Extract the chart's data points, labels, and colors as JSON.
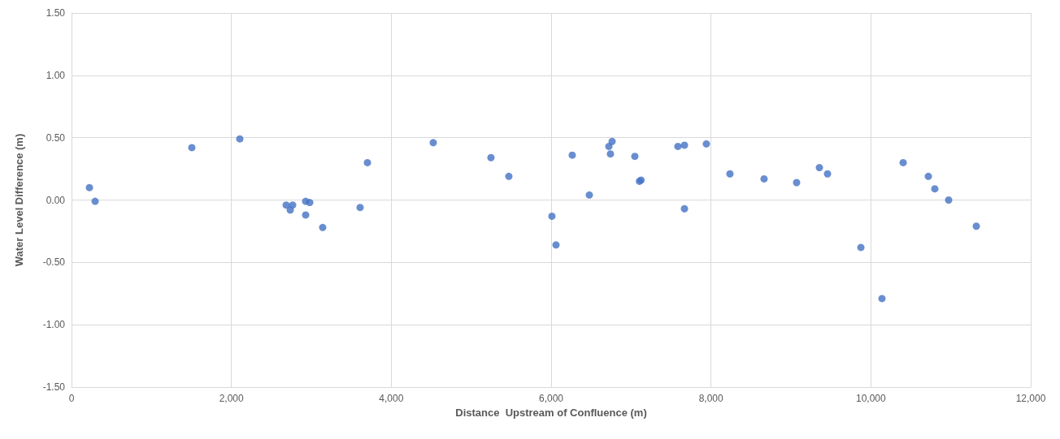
{
  "chart_data": {
    "type": "scatter",
    "xlabel": "Distance  Upstream of Confluence (m)",
    "ylabel": "Water Level Difference (m)",
    "x": [
      224,
      295,
      1505,
      2105,
      2685,
      2766,
      2736,
      2929,
      2980,
      2929,
      3142,
      3610,
      3702,
      4525,
      5247,
      5471,
      6010,
      6061,
      6264,
      6478,
      6722,
      6742,
      6763,
      7047,
      7105,
      7125,
      7586,
      7668,
      7668,
      7942,
      8237,
      8664,
      9071,
      9356,
      9458,
      9875,
      10139,
      10404,
      10719,
      10800,
      10973,
      11319
    ],
    "series": [
      {
        "color": "#4472c4",
        "values": [
          0.1,
          -0.01,
          0.42,
          0.49,
          -0.04,
          -0.04,
          -0.08,
          -0.01,
          -0.02,
          -0.12,
          -0.22,
          -0.06,
          0.3,
          0.46,
          0.34,
          0.19,
          -0.13,
          -0.36,
          0.36,
          0.04,
          0.43,
          0.37,
          0.47,
          0.35,
          0.15,
          0.16,
          0.43,
          0.44,
          -0.07,
          0.45,
          0.21,
          0.17,
          0.14,
          0.26,
          0.21,
          -0.38,
          -0.79,
          0.3,
          0.19,
          0.09,
          0.0,
          -0.21
        ]
      }
    ],
    "xlim": [
      0,
      12000
    ],
    "xticks": [
      0,
      {
        "value": 2000,
        "label": "2,000"
      },
      {
        "value": 4000,
        "label": "4,000"
      },
      {
        "value": 6000,
        "label": "6,000"
      },
      {
        "value": 8000,
        "label": "8,000"
      },
      {
        "value": 10000,
        "label": "10,000"
      },
      {
        "value": 12000,
        "label": "12,000"
      }
    ],
    "ylim": [
      -1.5,
      1.5
    ],
    "yticks": [
      {
        "value": -1.5,
        "label": "-1.50"
      },
      {
        "value": -1,
        "label": "-1.00"
      },
      {
        "value": -0.5,
        "label": "-0.50"
      },
      {
        "value": 0,
        "label": "0.00"
      },
      {
        "value": 0.5,
        "label": "0.50"
      },
      {
        "value": 1,
        "label": "1.00"
      },
      {
        "value": 1.5,
        "label": "1.50"
      }
    ],
    "grid": true,
    "marker": "circle"
  }
}
